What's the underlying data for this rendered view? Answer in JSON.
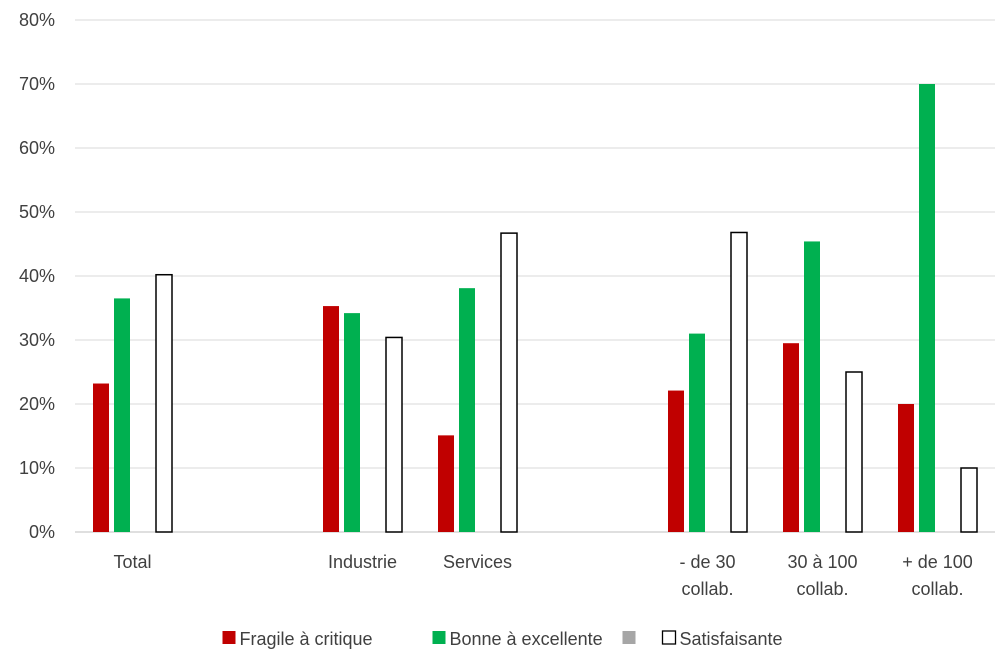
{
  "chart_data": {
    "type": "bar",
    "categories": [
      "Total",
      "",
      "Industrie",
      "Services",
      "",
      "- de 30\ncollab.",
      "30 à 100\ncollab.",
      "+ de 100\ncollab."
    ],
    "series": [
      {
        "name": "Fragile à critique",
        "color": "#C00000",
        "outline": false,
        "values": [
          23.2,
          null,
          35.3,
          15.1,
          null,
          22.1,
          29.5,
          20.0
        ]
      },
      {
        "name": "Bonne à excellente",
        "color": "#00B050",
        "outline": false,
        "values": [
          36.5,
          null,
          34.2,
          38.1,
          null,
          31.0,
          45.4,
          70.0
        ]
      },
      {
        "name": "",
        "color": "#A6A6A6",
        "outline": false,
        "values": [
          null,
          null,
          null,
          null,
          null,
          null,
          null,
          null
        ]
      },
      {
        "name": "Satisfaisante",
        "color": "#FFFFFF",
        "outline": true,
        "values": [
          40.2,
          null,
          30.4,
          46.7,
          null,
          46.8,
          25.0,
          10.0
        ]
      }
    ],
    "ylim": [
      0,
      80
    ],
    "yticks": [
      "0%",
      "10%",
      "20%",
      "30%",
      "40%",
      "50%",
      "60%",
      "70%",
      "80%"
    ],
    "grid": true,
    "legend": "bottom",
    "title": "",
    "xlabel": "",
    "ylabel": ""
  }
}
